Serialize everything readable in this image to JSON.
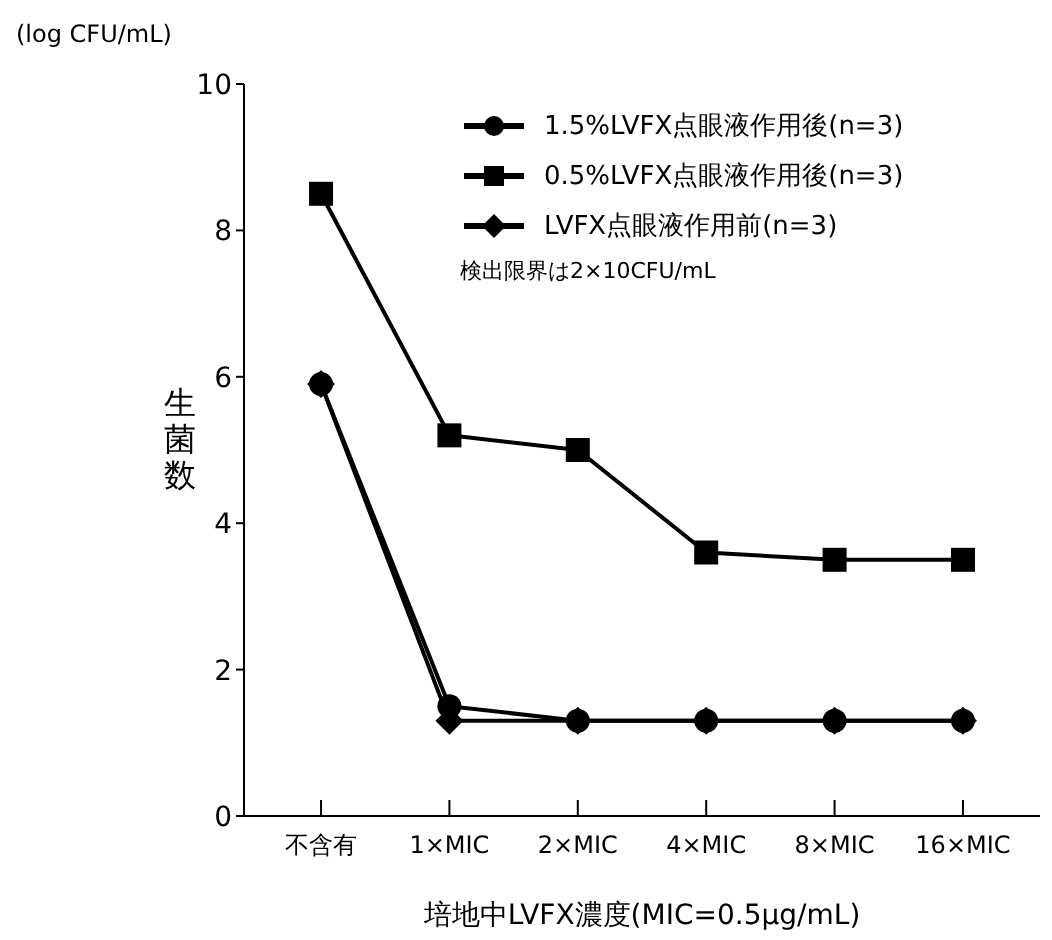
{
  "chart_data": {
    "type": "line",
    "ylabel": "生菌数",
    "xlabel": "培地中LVFX濃度(MIC=0.5μg/mL)",
    "categories": [
      "不含有",
      "1×MIC",
      "2×MIC",
      "4×MIC",
      "8×MIC",
      "16×MIC"
    ],
    "series": [
      {
        "name": "1.5%LVFX点眼液作用後(n=3)",
        "color": "#000000",
        "marker": "circle",
        "values": [
          5.9,
          1.5,
          1.3,
          1.3,
          1.3,
          1.3
        ]
      },
      {
        "name": "0.5%LVFX点眼液作用後(n=3)",
        "color": "#000000",
        "marker": "square",
        "values": [
          8.5,
          5.2,
          5.0,
          3.6,
          3.5,
          3.5
        ]
      },
      {
        "name": "LVFX点眼液作用前(n=3)",
        "color": "#000000",
        "marker": "diamond",
        "values": [
          5.9,
          1.3,
          1.3,
          1.3,
          1.3,
          1.3
        ]
      }
    ],
    "ylim": [
      0,
      10
    ],
    "yticks": [
      0,
      2,
      4,
      6,
      8,
      10
    ],
    "annotations": [
      "(log CFU/mL)",
      "検出限界は2×10CFU/mL"
    ],
    "legend": "top right",
    "grid": false
  }
}
